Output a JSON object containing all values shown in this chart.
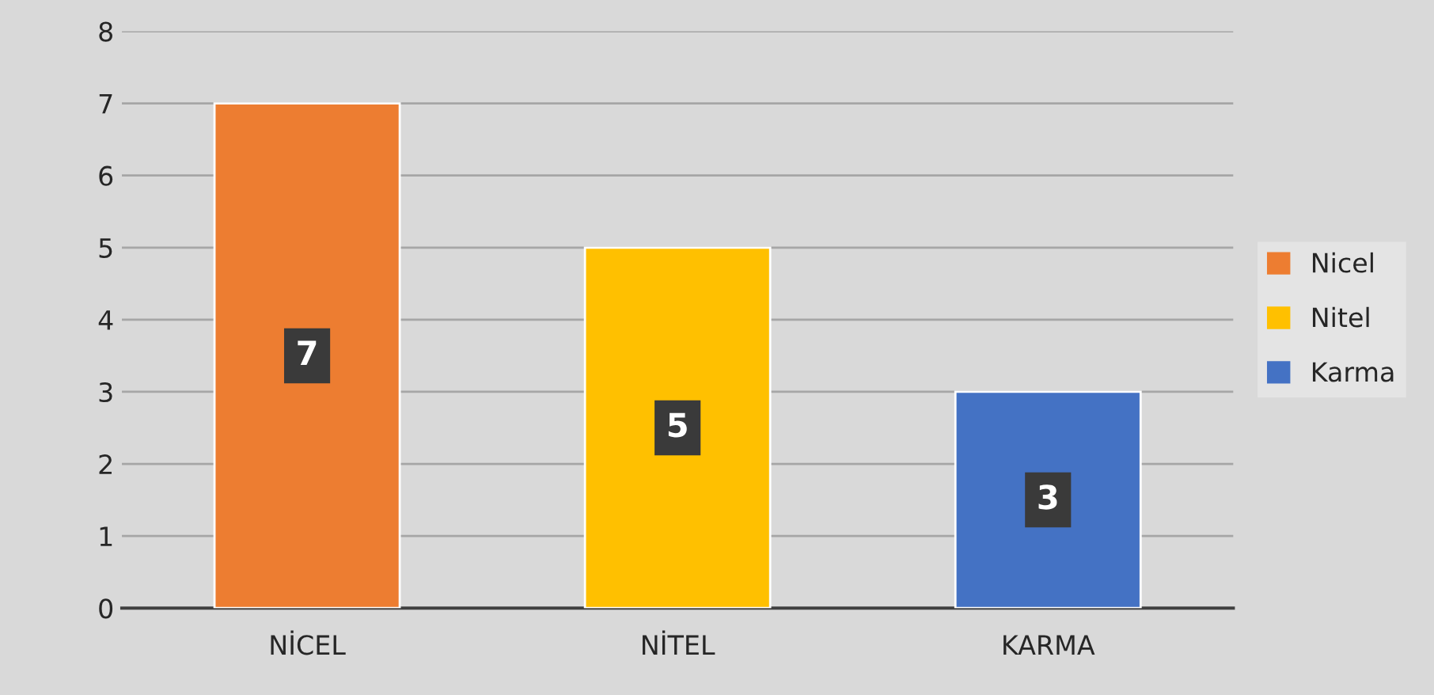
{
  "chart_data": {
    "type": "bar",
    "categories": [
      "NİCEL",
      "NİTEL",
      "KARMA"
    ],
    "series": [
      {
        "name": "Nicel",
        "color": "#ed7d31",
        "values": [
          7,
          null,
          null
        ]
      },
      {
        "name": "Nitel",
        "color": "#ffc000",
        "values": [
          null,
          5,
          null
        ]
      },
      {
        "name": "Karma",
        "color": "#4472c4",
        "values": [
          null,
          null,
          3
        ]
      }
    ],
    "ylim": [
      0,
      8
    ],
    "yticks": [
      0,
      1,
      2,
      3,
      4,
      5,
      6,
      7,
      8
    ],
    "grid": "y",
    "legend": "right",
    "data_labels": true
  }
}
